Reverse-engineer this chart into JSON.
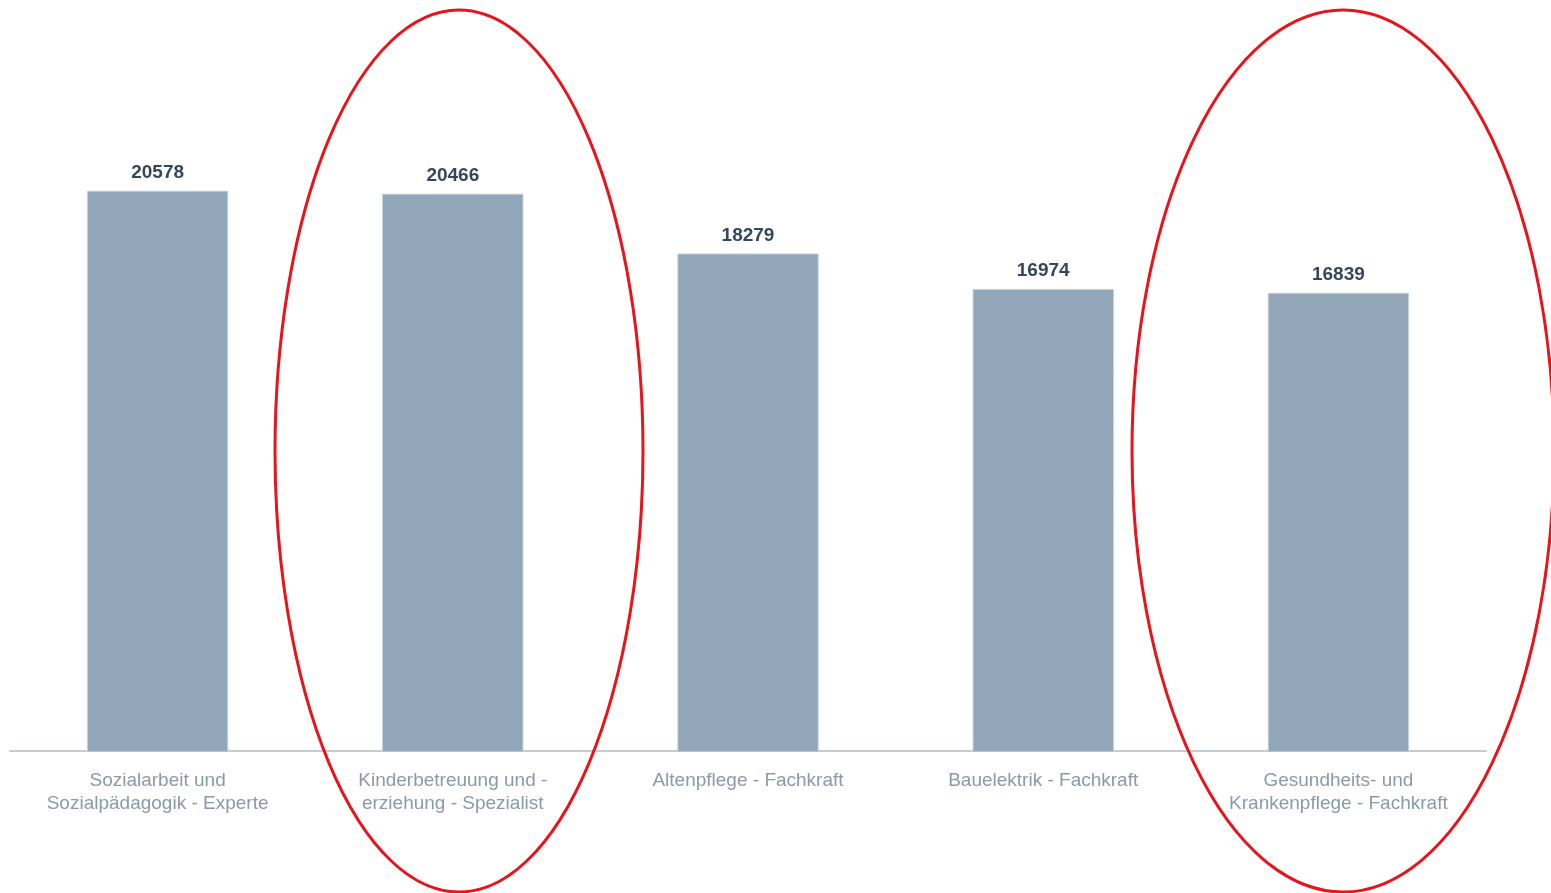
{
  "chart_data": {
    "type": "bar",
    "categories": [
      "Sozialarbeit und Sozialpädagogik - Experte",
      "Kinderbetreuung und - erziehung - Spezialist",
      "Altenpflege - Fachkraft",
      "Bauelektrik - Fachkraft",
      "Gesundheits- und Krankenpflege - Fachkraft"
    ],
    "values": [
      20578,
      20466,
      18279,
      16974,
      16839
    ],
    "color": "#93a7ba",
    "data_labels": true,
    "grid": false,
    "legend": false
  }
}
